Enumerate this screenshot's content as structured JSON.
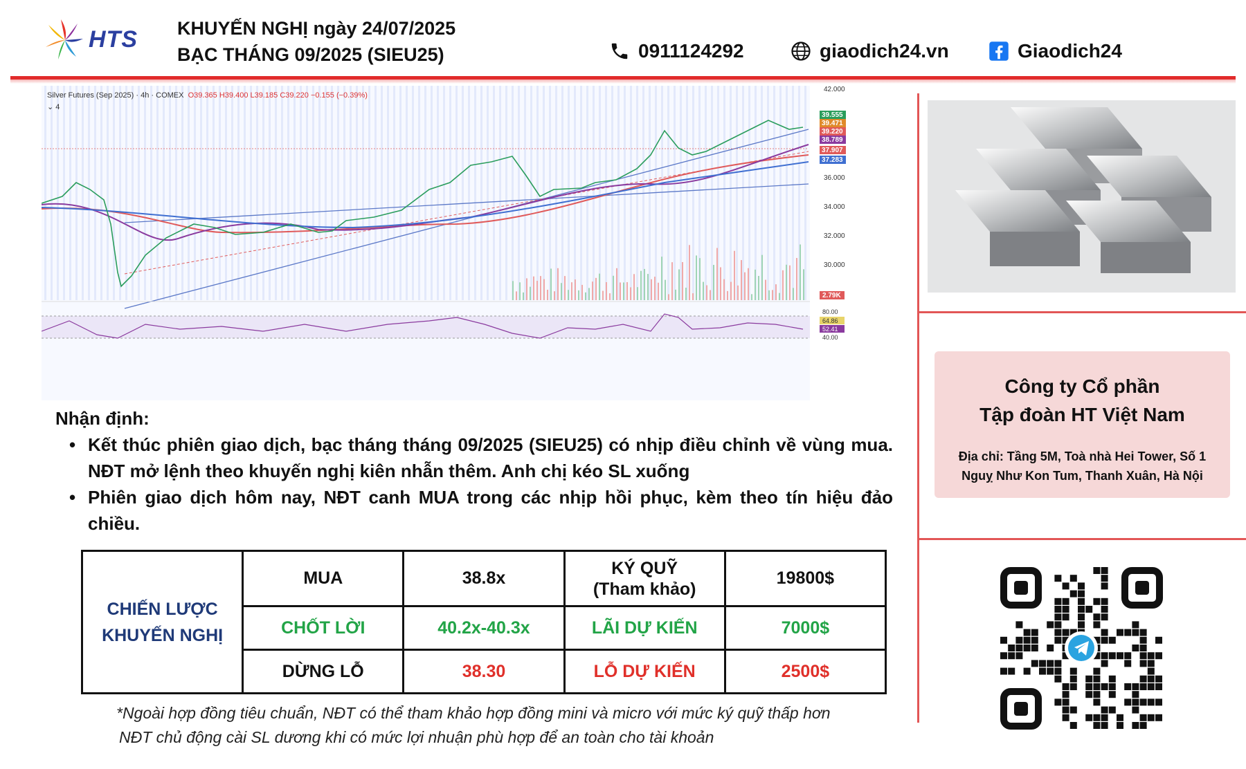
{
  "brand": {
    "logo_text": "HTS"
  },
  "header": {
    "title_line1": "KHUYẾN NGHỊ ngày 24/07/2025",
    "title_line2": "BẠC THÁNG 09/2025 (SIEU25)",
    "phone": "0911124292",
    "website": "giaodich24.vn",
    "facebook": "Giaodich24"
  },
  "chart": {
    "symbol": "Silver Futures (Sep 2025) · 4h · COMEX",
    "ohlc": "O39.365 H39.400 L39.185 C39.220 −0.155 (−0.39%)",
    "collapse_label": "4",
    "price_ticks": [
      "42.000",
      "36.000",
      "34.000",
      "32.000",
      "30.000"
    ],
    "price_tags": [
      "39.555",
      "39.471",
      "39.220",
      "38.789",
      "37.907",
      "37.283"
    ],
    "volume_tag": "2.79K",
    "rsi_ticks": [
      "80.00",
      "64.86",
      "52.41",
      "40.00"
    ]
  },
  "analysis": {
    "title": "Nhận định:",
    "bullets": [
      "Kết thúc phiên giao dịch, bạc tháng tháng 09/2025 (SIEU25) có nhịp điều chỉnh về vùng mua. NĐT mở lệnh theo khuyến nghị kiên nhẫn thêm. Anh chị kéo SL xuống",
      "Phiên giao dịch hôm nay, NĐT canh MUA trong các nhịp hồi phục, kèm theo tín hiệu đảo chiều."
    ]
  },
  "strategy": {
    "label_line1": "CHIẾN LƯỢC",
    "label_line2": "KHUYẾN NGHỊ",
    "action": "MUA",
    "entry": "38.8x",
    "margin_line1": "KÝ QUỸ",
    "margin_line2": "(Tham khảo)",
    "margin_value": "19800$",
    "tp_label": "CHỐT LỜI",
    "tp_value": "40.2x-40.3x",
    "profit_label": "LÃI DỰ KIẾN",
    "profit_value": "7000$",
    "sl_label": "DỪNG LỖ",
    "sl_value": "38.30",
    "loss_label": "LỖ DỰ KIẾN",
    "loss_value": "2500$"
  },
  "footnote": {
    "line1": "*Ngoài hợp đồng tiêu chuẩn, NĐT có thể tham khảo hợp đồng mini và micro với mức ký quỹ thấp hơn",
    "line2": "NĐT chủ động cài SL dương khi có mức lợi nhuận phù hợp để an toàn cho tài khoản"
  },
  "company": {
    "name_line1": "Công ty Cổ phần",
    "name_line2": "Tập đoàn HT Việt Nam",
    "address_line1": "Địa chỉ: Tầng 5M, Toà nhà Hei Tower, Số 1",
    "address_line2": "Nguỵ Như Kon Tum, Thanh Xuân, Hà Nội"
  },
  "colors": {
    "accent_red": "#e12b2b",
    "navy": "#1f3a78",
    "green": "#22a447",
    "red": "#e0302a"
  }
}
